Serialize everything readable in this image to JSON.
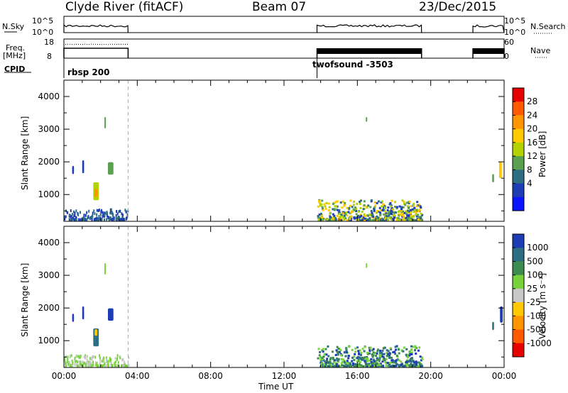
{
  "header": {
    "station": "Clyde River (fitACF)",
    "beam": "Beam 07",
    "date": "23/Dec/2015"
  },
  "status_panel": {
    "nsky_label": "N.Sky",
    "nsky_ticks": [
      "10^5",
      "10^0"
    ],
    "nsearch_label": "N.Search",
    "nsearch_ticks": [
      "10^5",
      "10^0"
    ],
    "freq_label": "Freq.",
    "freq_unit": "[MHz]",
    "freq_ticks": [
      "18",
      "8"
    ],
    "nave_label": "Nave",
    "nave_ticks": [
      "60",
      "0"
    ],
    "cpid_label": "CPID",
    "cpid_modes": [
      {
        "name": "rbsp 200",
        "start_h": 0.0
      },
      {
        "name": "twofsound -3503",
        "start_h": 13.8
      }
    ],
    "data_segments_h": [
      [
        0.0,
        3.5
      ],
      [
        13.8,
        19.5
      ],
      [
        22.3,
        24.0
      ]
    ]
  },
  "chart_data": [
    {
      "type": "heatmap",
      "quantity": "Power",
      "colorbar_label": "Power [dB]",
      "colorbar_ticks": [
        "28",
        "24",
        "20",
        "16",
        "12",
        "8",
        "4"
      ],
      "colorbar_colors": [
        "#e60000",
        "#ff5a00",
        "#ff9600",
        "#ffc800",
        "#b4d200",
        "#5aa050",
        "#2d6e82",
        "#1e3cb4",
        "#0a14ff"
      ],
      "ylabel": "Slant Range [km]",
      "yticks": [
        1000,
        2000,
        3000,
        4000
      ],
      "ylim": [
        180,
        4500
      ],
      "xlim": [
        0,
        24
      ],
      "patches": [
        {
          "x": 1.75,
          "y": 1100,
          "w": 0.3,
          "h": 550,
          "color": "#b4d200"
        },
        {
          "x": 1.75,
          "y": 1050,
          "w": 0.18,
          "h": 250,
          "color": "#ff9600"
        },
        {
          "x": 2.55,
          "y": 1800,
          "w": 0.3,
          "h": 380,
          "color": "#5aa050"
        },
        {
          "x": 0.5,
          "y": 1750,
          "w": 0.1,
          "h": 250,
          "color": "#1e3cb4"
        },
        {
          "x": 1.05,
          "y": 1850,
          "w": 0.1,
          "h": 400,
          "color": "#1e3cb4"
        },
        {
          "x": 2.25,
          "y": 3200,
          "w": 0.08,
          "h": 350,
          "color": "#5aa050"
        },
        {
          "x": 23.8,
          "y": 1750,
          "w": 0.15,
          "h": 500,
          "color": "#ffc800"
        },
        {
          "x": 23.4,
          "y": 1500,
          "w": 0.1,
          "h": 250,
          "color": "#5aa050"
        },
        {
          "x": 16.5,
          "y": 3300,
          "w": 0.05,
          "h": 150,
          "color": "#5aa050"
        }
      ],
      "near_range_band": {
        "x0": 13.8,
        "x1": 19.5,
        "y0": 180,
        "y1": 800,
        "colors": [
          "#1e3cb4",
          "#2d6e82",
          "#5aa050",
          "#b4d200",
          "#ffc800"
        ]
      },
      "early_band": {
        "x0": 0.0,
        "x1": 3.5,
        "y0": 180,
        "y1": 500
      }
    },
    {
      "type": "heatmap",
      "quantity": "Velocity",
      "colorbar_label": "Velocity [m s⁻¹]",
      "colorbar_ticks": [
        "1000",
        "500",
        "100",
        "25",
        "-25",
        "-100",
        "-500",
        "-1000"
      ],
      "colorbar_colors": [
        "#1e3cb4",
        "#2d6e82",
        "#3c8c50",
        "#78d23c",
        "#c8c8c8",
        "#ffc800",
        "#ff9600",
        "#ff5a00",
        "#e60000"
      ],
      "ylabel": "Slant Range [km]",
      "yticks": [
        1000,
        2000,
        3000,
        4000
      ],
      "ylim": [
        180,
        4500
      ],
      "xlim": [
        0,
        24
      ],
      "xlabel": "Time UT",
      "xtick_labels": [
        "00:00",
        "04:00",
        "08:00",
        "12:00",
        "16:00",
        "20:00",
        "00:00"
      ],
      "xtick_hours": [
        0,
        4,
        8,
        12,
        16,
        20,
        24
      ],
      "patches": [
        {
          "x": 1.75,
          "y": 1100,
          "w": 0.3,
          "h": 550,
          "color": "#2d6e82"
        },
        {
          "x": 1.75,
          "y": 1250,
          "w": 0.15,
          "h": 200,
          "color": "#ffc800"
        },
        {
          "x": 2.55,
          "y": 1800,
          "w": 0.3,
          "h": 380,
          "color": "#1e3cb4"
        },
        {
          "x": 0.5,
          "y": 1700,
          "w": 0.1,
          "h": 250,
          "color": "#1e3cb4"
        },
        {
          "x": 1.05,
          "y": 1850,
          "w": 0.1,
          "h": 400,
          "color": "#1e3cb4"
        },
        {
          "x": 2.25,
          "y": 3200,
          "w": 0.08,
          "h": 350,
          "color": "#78d23c"
        },
        {
          "x": 23.85,
          "y": 1800,
          "w": 0.15,
          "h": 500,
          "color": "#1e3cb4"
        },
        {
          "x": 23.4,
          "y": 1450,
          "w": 0.1,
          "h": 250,
          "color": "#2d6e82"
        },
        {
          "x": 16.5,
          "y": 3300,
          "w": 0.05,
          "h": 150,
          "color": "#78d23c"
        }
      ],
      "near_range_band": {
        "x0": 13.8,
        "x1": 19.5,
        "y0": 180,
        "y1": 800,
        "colors": [
          "#3c8c50",
          "#78d23c",
          "#1e3cb4",
          "#2d6e82"
        ]
      },
      "early_band": {
        "x0": 0.0,
        "x1": 3.5,
        "y0": 180,
        "y1": 500
      }
    }
  ]
}
